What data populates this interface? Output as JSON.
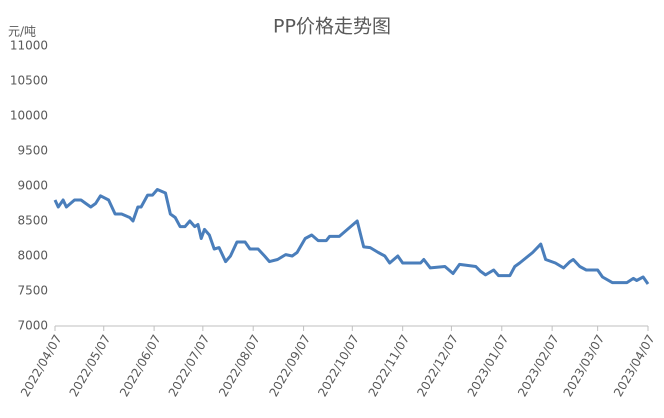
{
  "chart_data": {
    "type": "line",
    "title": "PP价格走势图",
    "y_label": "元/吨",
    "x": [
      "2022/04/07",
      "2022/04/09",
      "2022/04/12",
      "2022/04/14",
      "2022/04/19",
      "2022/04/23",
      "2022/04/29",
      "2022/05/02",
      "2022/05/05",
      "2022/05/10",
      "2022/05/14",
      "2022/05/18",
      "2022/05/23",
      "2022/05/25",
      "2022/05/28",
      "2022/05/30",
      "2022/06/03",
      "2022/06/06",
      "2022/06/09",
      "2022/06/14",
      "2022/06/17",
      "2022/06/20",
      "2022/06/23",
      "2022/06/26",
      "2022/06/29",
      "2022/07/02",
      "2022/07/04",
      "2022/07/06",
      "2022/07/08",
      "2022/07/11",
      "2022/07/14",
      "2022/07/17",
      "2022/07/21",
      "2022/07/24",
      "2022/07/28",
      "2022/08/02",
      "2022/08/05",
      "2022/08/10",
      "2022/08/14",
      "2022/08/17",
      "2022/08/22",
      "2022/08/27",
      "2022/08/31",
      "2022/09/03",
      "2022/09/08",
      "2022/09/12",
      "2022/09/16",
      "2022/09/21",
      "2022/09/23",
      "2022/09/29",
      "2022/10/10",
      "2022/10/14",
      "2022/10/18",
      "2022/10/23",
      "2022/10/27",
      "2022/10/30",
      "2022/11/04",
      "2022/11/07",
      "2022/11/18",
      "2022/11/20",
      "2022/11/24",
      "2022/12/03",
      "2022/12/08",
      "2022/12/12",
      "2022/12/22",
      "2022/12/25",
      "2022/12/28",
      "2023/01/02",
      "2023/01/05",
      "2023/01/12",
      "2023/01/15",
      "2023/01/18",
      "2023/01/26",
      "2023/01/31",
      "2023/02/03",
      "2023/02/09",
      "2023/02/14",
      "2023/02/18",
      "2023/02/20",
      "2023/02/24",
      "2023/02/28",
      "2023/03/07",
      "2023/03/10",
      "2023/03/16",
      "2023/03/25",
      "2023/03/29",
      "2023/03/31",
      "2023/04/04",
      "2023/04/07"
    ],
    "series": [
      {
        "name": "PP",
        "color": "#4a7ebb",
        "values": [
          8800,
          8700,
          8800,
          8700,
          8800,
          8800,
          8700,
          8750,
          8860,
          8800,
          8600,
          8600,
          8550,
          8500,
          8700,
          8700,
          8870,
          8870,
          8950,
          8900,
          8600,
          8550,
          8420,
          8420,
          8500,
          8420,
          8450,
          8250,
          8380,
          8300,
          8100,
          8120,
          7920,
          8000,
          8200,
          8200,
          8100,
          8100,
          8000,
          7920,
          7950,
          8020,
          8000,
          8050,
          8250,
          8300,
          8220,
          8220,
          8280,
          8280,
          8500,
          8130,
          8120,
          8050,
          8000,
          7900,
          8000,
          7900,
          7900,
          7950,
          7830,
          7850,
          7750,
          7880,
          7850,
          7780,
          7730,
          7800,
          7720,
          7720,
          7850,
          7900,
          8050,
          8170,
          7950,
          7900,
          7830,
          7920,
          7950,
          7850,
          7800,
          7800,
          7700,
          7620,
          7620,
          7680,
          7650,
          7700,
          7600
        ]
      }
    ],
    "xlim": [
      "2022/04/07",
      "2023/04/07"
    ],
    "xticks": [
      "2022/04/07",
      "2022/05/07",
      "2022/06/07",
      "2022/07/07",
      "2022/08/07",
      "2022/09/07",
      "2022/10/07",
      "2022/11/07",
      "2022/12/07",
      "2023/01/07",
      "2023/02/07",
      "2023/03/07",
      "2023/04/07"
    ],
    "ylim": [
      7000,
      11000
    ],
    "yticks": [
      7000,
      7500,
      8000,
      8500,
      9000,
      9500,
      10000,
      10500,
      11000
    ]
  }
}
